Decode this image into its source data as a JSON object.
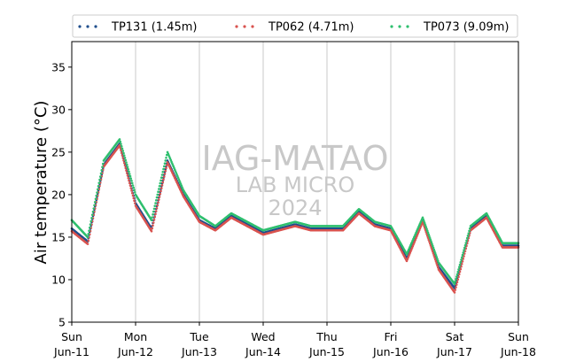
{
  "chart_data": {
    "type": "scatter",
    "ylabel": "Air temperature (°C)",
    "ylim": [
      5,
      38
    ],
    "yticks": [
      5,
      10,
      15,
      20,
      25,
      30,
      35
    ],
    "xlim": [
      "2024-06-11 00:00",
      "2024-06-18 00:00"
    ],
    "xticks": [
      {
        "day": "Sun",
        "date": "Jun-11"
      },
      {
        "day": "Mon",
        "date": "Jun-12"
      },
      {
        "day": "Tue",
        "date": "Jun-13"
      },
      {
        "day": "Wed",
        "date": "Jun-14"
      },
      {
        "day": "Thu",
        "date": "Jun-15"
      },
      {
        "day": "Fri",
        "date": "Jun-16"
      },
      {
        "day": "Sat",
        "date": "Jun-17"
      },
      {
        "day": "Sun",
        "date": "Jun-18"
      }
    ],
    "grid": "vertical",
    "legend_position": "top",
    "watermark": [
      "IAG-MATAO",
      "LAB MICRO",
      "2024"
    ],
    "x": [
      "2024-06-11 00:00",
      "2024-06-11 06:00",
      "2024-06-11 12:00",
      "2024-06-11 18:00",
      "2024-06-12 00:00",
      "2024-06-12 06:00",
      "2024-06-12 12:00",
      "2024-06-12 18:00",
      "2024-06-13 00:00",
      "2024-06-13 06:00",
      "2024-06-13 12:00",
      "2024-06-13 18:00",
      "2024-06-14 00:00",
      "2024-06-14 06:00",
      "2024-06-14 12:00",
      "2024-06-14 18:00",
      "2024-06-15 00:00",
      "2024-06-15 06:00",
      "2024-06-15 12:00",
      "2024-06-15 18:00",
      "2024-06-16 00:00",
      "2024-06-16 06:00",
      "2024-06-16 12:00",
      "2024-06-16 18:00",
      "2024-06-17 00:00",
      "2024-06-17 06:00",
      "2024-06-17 12:00",
      "2024-06-17 18:00",
      "2024-06-18 00:00"
    ],
    "series": [
      {
        "name": "TP131 (1.45m)",
        "color": "#1f4e8c",
        "values": [
          16.0,
          14.5,
          23.5,
          26.0,
          19.0,
          16.0,
          24.0,
          20.0,
          17.0,
          16.0,
          17.5,
          16.5,
          15.5,
          16.0,
          16.5,
          16.0,
          16.0,
          16.0,
          18.0,
          16.5,
          16.0,
          12.5,
          17.0,
          11.5,
          9.0,
          16.0,
          17.5,
          14.0,
          14.0
        ]
      },
      {
        "name": "TP062 (4.71m)",
        "color": "#d9534f",
        "values": [
          15.7,
          14.2,
          23.3,
          25.8,
          18.7,
          15.7,
          23.8,
          19.8,
          16.8,
          15.8,
          17.3,
          16.3,
          15.3,
          15.8,
          16.3,
          15.8,
          15.8,
          15.8,
          17.8,
          16.3,
          15.8,
          12.2,
          16.8,
          11.2,
          8.5,
          15.8,
          17.3,
          13.8,
          13.8
        ]
      },
      {
        "name": "TP073 (9.09m)",
        "color": "#2ebf6e",
        "values": [
          17.0,
          15.0,
          24.0,
          26.5,
          20.0,
          17.0,
          25.0,
          20.5,
          17.5,
          16.3,
          17.8,
          16.8,
          15.8,
          16.3,
          16.8,
          16.3,
          16.3,
          16.3,
          18.3,
          16.8,
          16.3,
          13.0,
          17.3,
          12.0,
          9.5,
          16.3,
          17.8,
          14.3,
          14.3
        ]
      }
    ]
  }
}
